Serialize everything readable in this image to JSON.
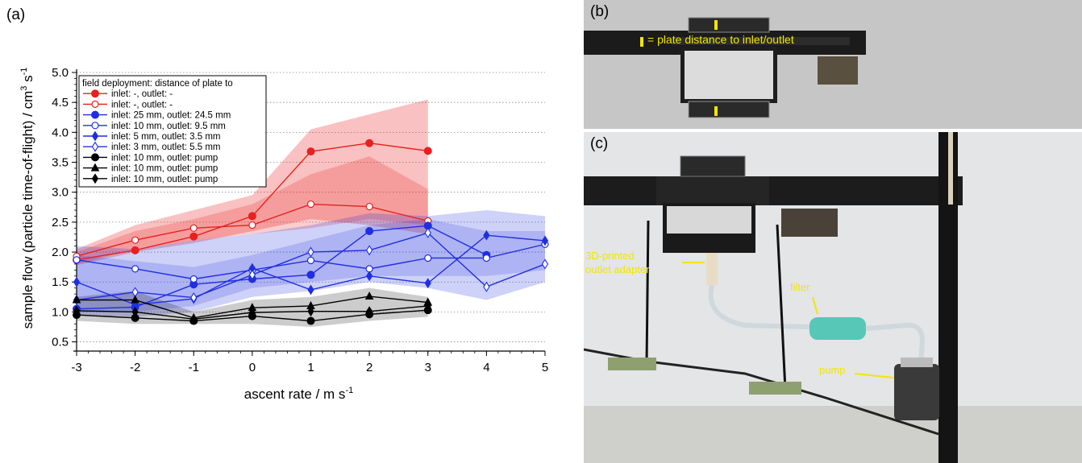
{
  "panel_labels": {
    "a": "(a)",
    "b": "(b)",
    "c": "(c)"
  },
  "photo_b": {
    "annotation": "= plate distance to inlet/outlet"
  },
  "photo_c": {
    "annotations": {
      "outlet_adapter_line1": "3D-printed",
      "outlet_adapter_line2": "outlet adapter",
      "filter": "filter",
      "pump": "pump"
    }
  },
  "colors": {
    "red": "#e8201f",
    "blue": "#1f2fe0",
    "black": "#000000",
    "annotation_yellow": "#f2e600"
  },
  "chart_data": {
    "type": "line",
    "ylabel": "sample flow (particle time-of-flight) / cm",
    "ylabel_sup1": "3",
    "ylabel_mid": " s",
    "ylabel_sup2": "-1",
    "xlabel": "ascent rate / m s",
    "xlabel_sup": "-1",
    "xlim": [
      -3,
      5
    ],
    "ylim": [
      0.4,
      5.0
    ],
    "xticks": [
      -3,
      -2,
      -1,
      0,
      1,
      2,
      3,
      4,
      5
    ],
    "yticks": [
      "0.5",
      "1.0",
      "1.5",
      "2.0",
      "2.5",
      "3.0",
      "3.5",
      "4.0",
      "4.5",
      "5.0"
    ],
    "ytick_values": [
      0.5,
      1.0,
      1.5,
      2.0,
      2.5,
      3.0,
      3.5,
      4.0,
      4.5,
      5.0
    ],
    "grid": "horizontal dotted",
    "legend_title": "field deployment: distance of plate to",
    "legend_position": "top-left",
    "series": [
      {
        "name": "inlet: -, outlet: -",
        "color": "#e8201f",
        "marker": "filled-circle",
        "x": [
          -3,
          -2,
          -1,
          0,
          1,
          2,
          3
        ],
        "y": [
          1.87,
          2.03,
          2.26,
          2.6,
          3.68,
          3.82,
          3.69
        ]
      },
      {
        "name": "inlet: -, outlet: -",
        "color": "#e8201f",
        "marker": "open-circle",
        "x": [
          -3,
          -2,
          -1,
          0,
          1,
          2,
          3
        ],
        "y": [
          1.93,
          2.2,
          2.4,
          2.45,
          2.8,
          2.76,
          2.52
        ]
      },
      {
        "name": "inlet: 25 mm, outlet: 24.5 mm",
        "color": "#1f2fe0",
        "marker": "filled-circle",
        "x": [
          -3,
          -2,
          -1,
          0,
          1,
          2,
          3,
          4
        ],
        "y": [
          1.05,
          1.08,
          1.46,
          1.55,
          1.62,
          2.35,
          2.44,
          1.95
        ]
      },
      {
        "name": "inlet: 10 mm, outlet: 9.5 mm",
        "color": "#1f2fe0",
        "marker": "open-circle",
        "x": [
          -3,
          -2,
          -1,
          0,
          1,
          2,
          3,
          4,
          5
        ],
        "y": [
          1.87,
          1.72,
          1.55,
          1.7,
          1.86,
          1.72,
          1.9,
          1.9,
          2.13
        ]
      },
      {
        "name": "inlet: 5 mm, outlet: 3.5 mm",
        "color": "#1f2fe0",
        "marker": "filled-diamond",
        "x": [
          -3,
          -2,
          -1,
          0,
          1,
          2,
          3,
          4,
          5
        ],
        "y": [
          1.5,
          1.12,
          1.22,
          1.73,
          1.37,
          1.6,
          1.48,
          2.28,
          2.19
        ]
      },
      {
        "name": "inlet: 3 mm, outlet: 5.5 mm",
        "color": "#1f2fe0",
        "marker": "open-diamond",
        "x": [
          -3,
          -2,
          -1,
          0,
          1,
          2,
          3,
          4,
          5
        ],
        "y": [
          1.2,
          1.33,
          1.24,
          1.62,
          2.0,
          2.03,
          2.32,
          1.42,
          1.8
        ]
      },
      {
        "name": "inlet: 10 mm, outlet: pump",
        "color": "#000000",
        "marker": "filled-circle",
        "x": [
          -3,
          -2,
          -1,
          0,
          1,
          2,
          3
        ],
        "y": [
          0.95,
          0.9,
          0.85,
          0.93,
          0.85,
          0.96,
          1.03
        ]
      },
      {
        "name": "inlet: 10 mm, outlet: pump",
        "color": "#000000",
        "marker": "filled-triangle",
        "x": [
          -3,
          -2,
          -1,
          0,
          1,
          2,
          3
        ],
        "y": [
          1.2,
          1.2,
          0.9,
          1.07,
          1.1,
          1.26,
          1.16
        ]
      },
      {
        "name": "inlet: 10 mm, outlet: pump",
        "color": "#000000",
        "marker": "filled-diamond",
        "x": [
          -3,
          -2,
          -1,
          0,
          1,
          2,
          3
        ],
        "y": [
          1.02,
          1.0,
          0.88,
          0.99,
          1.01,
          1.01,
          1.1
        ]
      }
    ],
    "bands": [
      {
        "color": "#e8201f",
        "opacity": 0.28,
        "x": [
          -3,
          -2,
          -1,
          0,
          1,
          2,
          3
        ],
        "lower": [
          1.78,
          2.0,
          2.15,
          2.35,
          2.55,
          2.45,
          2.3
        ],
        "upper": [
          2.05,
          2.45,
          2.7,
          2.95,
          4.05,
          4.3,
          4.55
        ]
      },
      {
        "color": "#e8201f",
        "opacity": 0.22,
        "x": [
          -3,
          -2,
          -1,
          0,
          1,
          2,
          3
        ],
        "lower": [
          1.8,
          2.05,
          2.2,
          2.3,
          2.4,
          2.55,
          2.45
        ],
        "upper": [
          2.0,
          2.35,
          2.55,
          2.8,
          3.3,
          3.6,
          3.05
        ]
      },
      {
        "color": "#1f2fe0",
        "opacity": 0.22,
        "x": [
          -3,
          -2,
          -1,
          0,
          1,
          2,
          3,
          4,
          5
        ],
        "lower": [
          0.95,
          0.92,
          1.0,
          1.25,
          1.35,
          1.5,
          1.4,
          1.2,
          1.5
        ],
        "upper": [
          2.1,
          2.05,
          2.2,
          2.3,
          2.45,
          2.65,
          2.6,
          2.7,
          2.6
        ]
      },
      {
        "color": "#1f2fe0",
        "opacity": 0.18,
        "x": [
          -3,
          -2,
          -1,
          0,
          1,
          2,
          3,
          4,
          5
        ],
        "lower": [
          1.0,
          1.0,
          1.1,
          1.4,
          1.5,
          1.6,
          1.6,
          1.6,
          1.7
        ],
        "upper": [
          1.95,
          1.85,
          1.75,
          1.95,
          2.2,
          2.45,
          2.55,
          2.35,
          2.35
        ]
      },
      {
        "color": "#000000",
        "opacity": 0.2,
        "x": [
          -3,
          -2,
          -1,
          0,
          1,
          2,
          3
        ],
        "lower": [
          0.85,
          0.8,
          0.8,
          0.8,
          0.75,
          0.85,
          0.92
        ],
        "upper": [
          1.25,
          1.35,
          1.0,
          1.2,
          1.25,
          1.4,
          1.25
        ]
      }
    ]
  }
}
